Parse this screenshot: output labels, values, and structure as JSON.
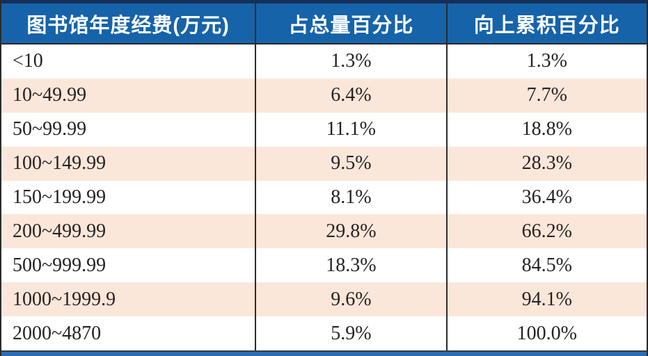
{
  "table": {
    "headers": [
      "图书馆年度经费(万元)",
      "占总量百分比",
      "向上累积百分比"
    ],
    "rows": [
      {
        "range": "<10",
        "pct": "1.3%",
        "cum": "1.3%"
      },
      {
        "range": "10~49.99",
        "pct": "6.4%",
        "cum": "7.7%"
      },
      {
        "range": "50~99.99",
        "pct": "11.1%",
        "cum": "18.8%"
      },
      {
        "range": "100~149.99",
        "pct": "9.5%",
        "cum": "28.3%"
      },
      {
        "range": "150~199.99",
        "pct": "8.1%",
        "cum": "36.4%"
      },
      {
        "range": "200~499.99",
        "pct": "29.8%",
        "cum": "66.2%"
      },
      {
        "range": "500~999.99",
        "pct": "18.3%",
        "cum": "84.5%"
      },
      {
        "range": "1000~1999.9",
        "pct": "9.6%",
        "cum": "94.1%"
      },
      {
        "range": "2000~4870",
        "pct": "5.9%",
        "cum": "100.0%"
      }
    ]
  },
  "colors": {
    "header_bg": "#1663a9",
    "header_text": "#ffffff",
    "row_alt_bg": "#fbe7da",
    "row_bg": "#ffffff",
    "grid_line": "#2b2b2b",
    "top_strip": "#14305a",
    "bottom_bar": "#2a6db5",
    "body_text": "#262223"
  },
  "chart_data": {
    "type": "table",
    "columns": [
      "图书馆年度经费(万元)",
      "占总量百分比",
      "向上累积百分比"
    ],
    "rows": [
      [
        "<10",
        "1.3%",
        "1.3%"
      ],
      [
        "10~49.99",
        "6.4%",
        "7.7%"
      ],
      [
        "50~99.99",
        "11.1%",
        "18.8%"
      ],
      [
        "100~149.99",
        "9.5%",
        "28.3%"
      ],
      [
        "150~199.99",
        "8.1%",
        "36.4%"
      ],
      [
        "200~499.99",
        "29.8%",
        "66.2%"
      ],
      [
        "500~999.99",
        "18.3%",
        "84.5%"
      ],
      [
        "1000~1999.9",
        "9.6%",
        "94.1%"
      ],
      [
        "2000~4870",
        "5.9%",
        "100.0%"
      ]
    ],
    "pct_values": [
      1.3,
      6.4,
      11.1,
      9.5,
      8.1,
      29.8,
      18.3,
      9.6,
      5.9
    ],
    "cumulative_values": [
      1.3,
      7.7,
      18.8,
      28.3,
      36.4,
      66.2,
      84.5,
      94.1,
      100.0
    ]
  }
}
